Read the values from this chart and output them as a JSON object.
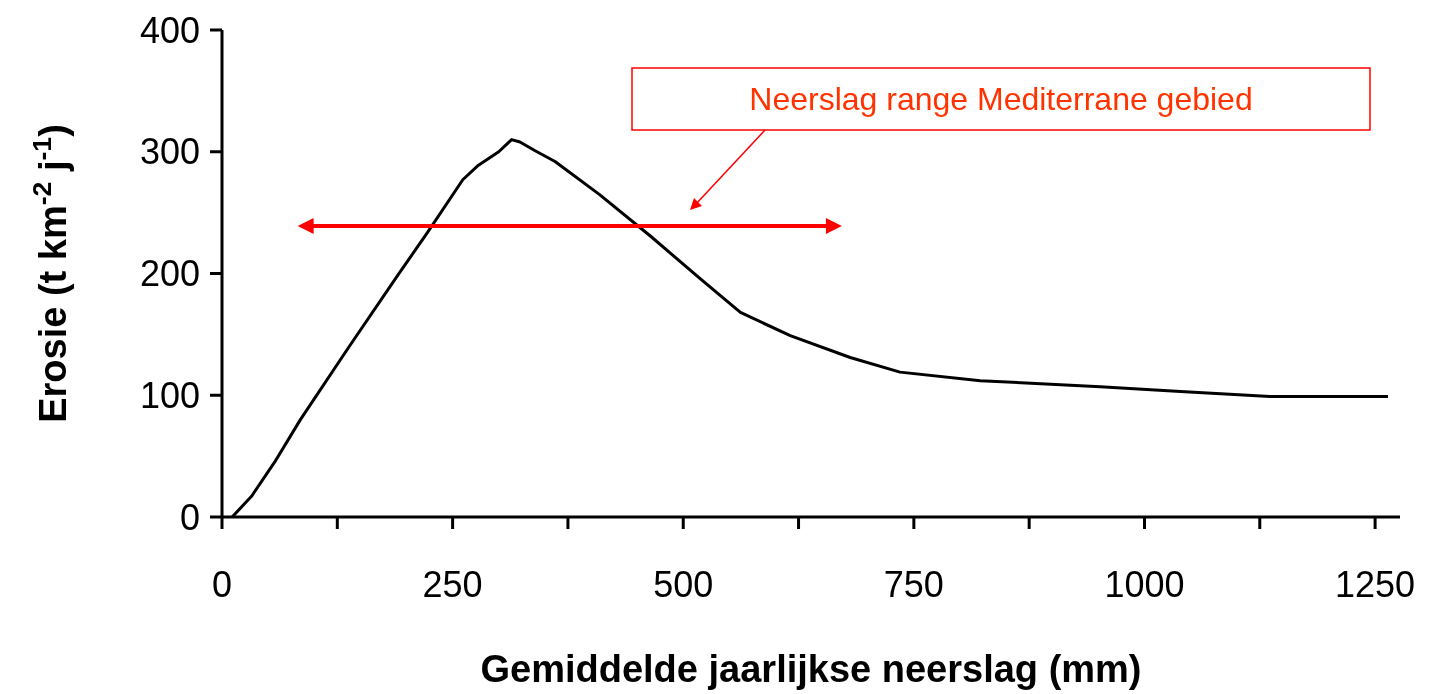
{
  "chart_data": {
    "type": "line",
    "xlabel": "Gemiddelde jaarlijkse neerslag (mm)",
    "ylabel": "Erosie (t km$^{-2}$ j$^{-1}$)",
    "x": [
      11,
      32,
      57,
      85,
      137,
      191,
      223,
      261,
      278,
      300,
      314,
      323,
      339,
      361,
      409,
      464,
      518,
      562,
      616,
      681,
      735,
      822,
      952,
      1039,
      1136,
      1169,
      1264
    ],
    "series": [
      {
        "color": "#000000",
        "values": [
          0,
          17,
          45,
          80,
          139,
          199,
          234,
          277,
          289,
          300,
          310,
          308,
          301,
          292,
          265,
          231,
          196,
          168,
          149,
          131,
          119,
          112,
          107,
          103,
          99,
          99,
          99
        ]
      }
    ],
    "xlim": [
      0,
      1277
    ],
    "xticks": [
      0,
      {
        "value": 125,
        "label": null
      },
      250,
      {
        "value": 375,
        "label": null
      },
      500,
      {
        "value": 625,
        "label": null
      },
      750,
      {
        "value": 875,
        "label": null
      },
      1000,
      {
        "value": 1125,
        "label": null
      },
      1250
    ],
    "ylim": [
      0,
      400
    ],
    "yticks": [
      0,
      100,
      200,
      300,
      400
    ],
    "grid": false,
    "marker": "none",
    "line_style": "solid",
    "annotations": [
      "Neerslag range Mediterrane gebied"
    ]
  }
}
